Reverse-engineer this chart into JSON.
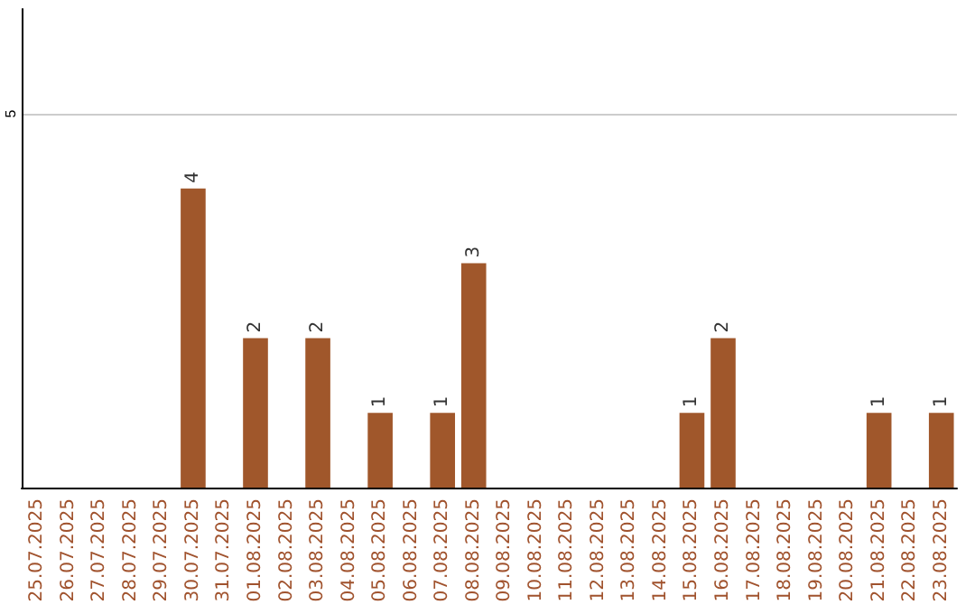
{
  "chart_data": {
    "type": "bar",
    "categories": [
      "25.07.2025",
      "26.07.2025",
      "27.07.2025",
      "28.07.2025",
      "29.07.2025",
      "30.07.2025",
      "31.07.2025",
      "01.08.2025",
      "02.08.2025",
      "03.08.2025",
      "04.08.2025",
      "05.08.2025",
      "06.08.2025",
      "07.08.2025",
      "08.08.2025",
      "09.08.2025",
      "10.08.2025",
      "11.08.2025",
      "12.08.2025",
      "13.08.2025",
      "14.08.2025",
      "15.08.2025",
      "16.08.2025",
      "17.08.2025",
      "18.08.2025",
      "19.08.2025",
      "20.08.2025",
      "21.08.2025",
      "22.08.2025",
      "23.08.2025"
    ],
    "values": [
      0,
      0,
      0,
      0,
      0,
      4,
      0,
      2,
      0,
      2,
      0,
      1,
      0,
      1,
      3,
      0,
      0,
      0,
      0,
      0,
      0,
      1,
      2,
      0,
      0,
      0,
      0,
      1,
      0,
      1
    ],
    "value_labels": [
      null,
      null,
      null,
      null,
      null,
      "4",
      null,
      "2",
      null,
      "2",
      null,
      "1",
      null,
      "1",
      "3",
      null,
      null,
      null,
      null,
      null,
      null,
      "1",
      "2",
      null,
      null,
      null,
      null,
      "1",
      null,
      "1"
    ],
    "color": "#a0572b",
    "ylim": [
      0,
      6.4
    ],
    "yticks": [
      5
    ],
    "grid": "y"
  }
}
